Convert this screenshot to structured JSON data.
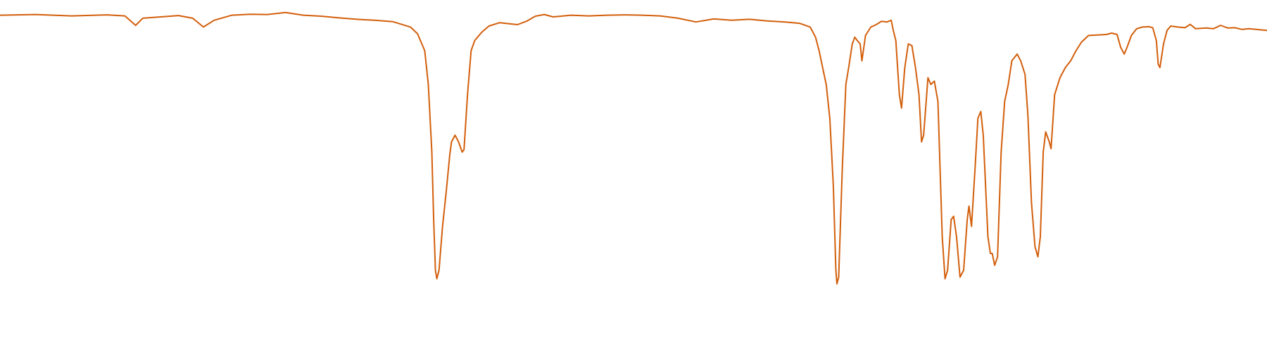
{
  "chart_data": {
    "type": "line",
    "title": "",
    "xlabel": "",
    "ylabel": "",
    "grid": false,
    "legend": "none",
    "x_reversed": true,
    "xlim": [
      4000,
      450
    ],
    "ylim": [
      0,
      100
    ],
    "colors": {
      "line": "#d35f0c",
      "background": "#ffffff"
    },
    "series": [
      {
        "name": "",
        "points": [
          [
            4000,
            95.5
          ],
          [
            3900,
            95.7
          ],
          [
            3800,
            95.3
          ],
          [
            3700,
            95.6
          ],
          [
            3650,
            95.3
          ],
          [
            3620,
            92.5
          ],
          [
            3600,
            94.6
          ],
          [
            3550,
            95.0
          ],
          [
            3500,
            95.4
          ],
          [
            3460,
            94.6
          ],
          [
            3430,
            92.0
          ],
          [
            3400,
            94.0
          ],
          [
            3350,
            95.5
          ],
          [
            3300,
            95.8
          ],
          [
            3250,
            95.7
          ],
          [
            3200,
            96.3
          ],
          [
            3150,
            95.5
          ],
          [
            3100,
            95.2
          ],
          [
            3050,
            94.7
          ],
          [
            3000,
            94.3
          ],
          [
            2950,
            94.0
          ],
          [
            2900,
            93.6
          ],
          [
            2850,
            92.0
          ],
          [
            2830,
            90.0
          ],
          [
            2810,
            85.0
          ],
          [
            2800,
            75.0
          ],
          [
            2790,
            55.0
          ],
          [
            2785,
            35.0
          ],
          [
            2780,
            20.0
          ],
          [
            2776,
            17.5
          ],
          [
            2770,
            20.0
          ],
          [
            2760,
            33.0
          ],
          [
            2750,
            43.0
          ],
          [
            2740,
            54.0
          ],
          [
            2735,
            58.0
          ],
          [
            2725,
            60.0
          ],
          [
            2715,
            58.0
          ],
          [
            2705,
            55.0
          ],
          [
            2700,
            55.7
          ],
          [
            2690,
            72.0
          ],
          [
            2680,
            85.0
          ],
          [
            2670,
            88.0
          ],
          [
            2650,
            90.5
          ],
          [
            2630,
            92.3
          ],
          [
            2600,
            93.3
          ],
          [
            2575,
            93.0
          ],
          [
            2550,
            92.7
          ],
          [
            2525,
            93.7
          ],
          [
            2500,
            95.2
          ],
          [
            2475,
            95.7
          ],
          [
            2450,
            95.0
          ],
          [
            2400,
            95.5
          ],
          [
            2350,
            95.3
          ],
          [
            2300,
            95.5
          ],
          [
            2250,
            95.6
          ],
          [
            2200,
            95.5
          ],
          [
            2150,
            95.3
          ],
          [
            2100,
            94.6
          ],
          [
            2050,
            93.5
          ],
          [
            2000,
            94.4
          ],
          [
            1950,
            94.0
          ],
          [
            1900,
            94.3
          ],
          [
            1850,
            93.8
          ],
          [
            1800,
            93.5
          ],
          [
            1760,
            93.1
          ],
          [
            1730,
            92.0
          ],
          [
            1715,
            89.0
          ],
          [
            1705,
            85.0
          ],
          [
            1695,
            80.0
          ],
          [
            1685,
            75.0
          ],
          [
            1675,
            65.0
          ],
          [
            1665,
            45.0
          ],
          [
            1658,
            20.0
          ],
          [
            1655,
            16.0
          ],
          [
            1650,
            18.0
          ],
          [
            1640,
            50.0
          ],
          [
            1630,
            75.0
          ],
          [
            1622,
            80.0
          ],
          [
            1612,
            87.0
          ],
          [
            1605,
            89.0
          ],
          [
            1598,
            88.0
          ],
          [
            1590,
            87.0
          ],
          [
            1585,
            82.0
          ],
          [
            1575,
            89.5
          ],
          [
            1560,
            92.0
          ],
          [
            1545,
            92.7
          ],
          [
            1530,
            93.7
          ],
          [
            1515,
            93.5
          ],
          [
            1503,
            94.0
          ],
          [
            1497,
            91.0
          ],
          [
            1490,
            88.0
          ],
          [
            1480,
            72.0
          ],
          [
            1474,
            68.0
          ],
          [
            1465,
            80.0
          ],
          [
            1455,
            87.0
          ],
          [
            1445,
            86.5
          ],
          [
            1435,
            80.0
          ],
          [
            1425,
            72.0
          ],
          [
            1418,
            58.0
          ],
          [
            1412,
            60.0
          ],
          [
            1400,
            77.0
          ],
          [
            1392,
            75.0
          ],
          [
            1382,
            76.0
          ],
          [
            1372,
            70.0
          ],
          [
            1360,
            30.0
          ],
          [
            1352,
            17.5
          ],
          [
            1345,
            20.0
          ],
          [
            1335,
            35.0
          ],
          [
            1328,
            36.0
          ],
          [
            1320,
            30.0
          ],
          [
            1310,
            18.0
          ],
          [
            1300,
            20.0
          ],
          [
            1290,
            35.0
          ],
          [
            1285,
            39.0
          ],
          [
            1278,
            33.0
          ],
          [
            1268,
            50.0
          ],
          [
            1260,
            65.0
          ],
          [
            1252,
            67.0
          ],
          [
            1245,
            60.0
          ],
          [
            1232,
            30.0
          ],
          [
            1225,
            25.0
          ],
          [
            1220,
            25.0
          ],
          [
            1213,
            21.5
          ],
          [
            1205,
            24.0
          ],
          [
            1195,
            55.0
          ],
          [
            1185,
            70.0
          ],
          [
            1175,
            75.0
          ],
          [
            1165,
            82.0
          ],
          [
            1150,
            84.0
          ],
          [
            1140,
            82.0
          ],
          [
            1128,
            78.0
          ],
          [
            1120,
            66.0
          ],
          [
            1110,
            40.0
          ],
          [
            1100,
            27.0
          ],
          [
            1092,
            24.0
          ],
          [
            1085,
            30.0
          ],
          [
            1077,
            55.0
          ],
          [
            1070,
            61.0
          ],
          [
            1060,
            58.0
          ],
          [
            1055,
            56.0
          ],
          [
            1045,
            72.0
          ],
          [
            1030,
            77.0
          ],
          [
            1015,
            80.0
          ],
          [
            1000,
            82.0
          ],
          [
            985,
            85.0
          ],
          [
            970,
            87.5
          ],
          [
            950,
            89.5
          ],
          [
            930,
            89.6
          ],
          [
            900,
            89.8
          ],
          [
            885,
            90.2
          ],
          [
            870,
            89.8
          ],
          [
            860,
            86.0
          ],
          [
            850,
            84.0
          ],
          [
            842,
            86.0
          ],
          [
            830,
            89.5
          ],
          [
            815,
            91.5
          ],
          [
            800,
            92.0
          ],
          [
            780,
            92.1
          ],
          [
            770,
            91.8
          ],
          [
            760,
            88.0
          ],
          [
            755,
            81.0
          ],
          [
            750,
            80.0
          ],
          [
            740,
            87.0
          ],
          [
            730,
            91.0
          ],
          [
            720,
            92.3
          ],
          [
            700,
            92.0
          ],
          [
            680,
            91.8
          ],
          [
            665,
            92.8
          ],
          [
            650,
            91.5
          ],
          [
            620,
            91.7
          ],
          [
            600,
            91.5
          ],
          [
            580,
            92.5
          ],
          [
            560,
            91.7
          ],
          [
            540,
            91.8
          ],
          [
            520,
            91.3
          ],
          [
            500,
            91.5
          ],
          [
            480,
            91.3
          ],
          [
            450,
            91.0
          ]
        ]
      }
    ]
  }
}
